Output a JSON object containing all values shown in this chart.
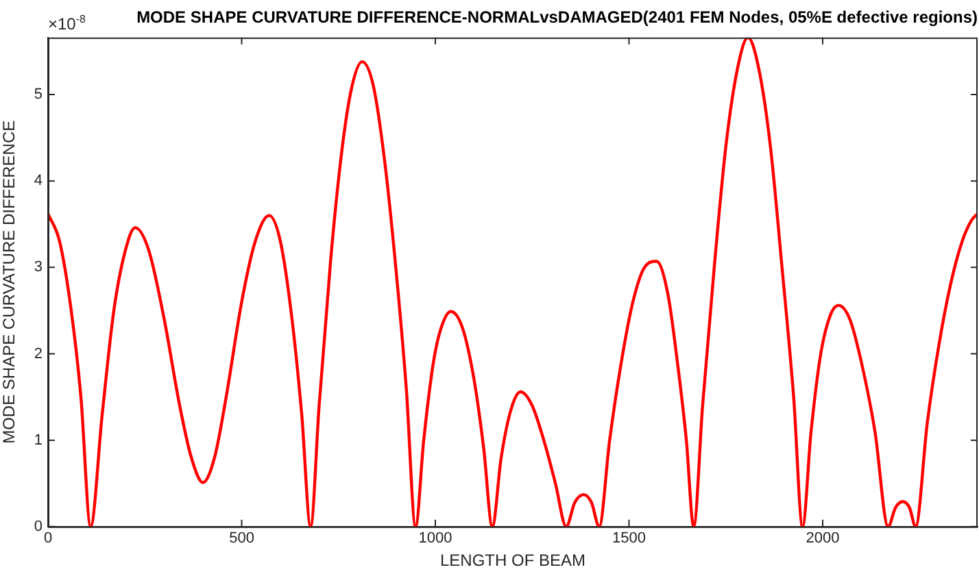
{
  "chart_data": {
    "type": "line",
    "title": "MODE SHAPE CURVATURE DIFFERENCE-NORMALvsDAMAGED(2401 FEM Nodes, 05%E defective regions)",
    "xlabel": "LENGTH OF BEAM",
    "ylabel": "MODE SHAPE CURVATURE DIFFERENCE",
    "annotations": [
      "×10$^{-8}$"
    ],
    "x": [
      0,
      30,
      60,
      85,
      110,
      140,
      170,
      200,
      225,
      260,
      300,
      340,
      370,
      400,
      430,
      460,
      500,
      535,
      571,
      600,
      630,
      655,
      678,
      700,
      730,
      760,
      785,
      811,
      840,
      870,
      900,
      925,
      949,
      970,
      995,
      1015,
      1040,
      1070,
      1100,
      1125,
      1147,
      1170,
      1195,
      1220,
      1250,
      1280,
      1310,
      1338,
      1360,
      1383,
      1403,
      1423,
      1450,
      1480,
      1510,
      1540,
      1571,
      1600,
      1625,
      1648,
      1667,
      1690,
      1720,
      1750,
      1780,
      1807,
      1835,
      1865,
      1895,
      1925,
      1948,
      1970,
      1995,
      2020,
      2041,
      2070,
      2100,
      2135,
      2169,
      2188,
      2207,
      2224,
      2240,
      2270,
      2300,
      2330,
      2360,
      2385,
      2400
    ],
    "series": [
      {
        "color": "#ff0000",
        "values": [
          3.62,
          3.3,
          2.5,
          1.5,
          0,
          1.3,
          2.5,
          3.2,
          3.46,
          3.2,
          2.4,
          1.4,
          0.8,
          0.51,
          0.8,
          1.5,
          2.6,
          3.3,
          3.6,
          3.3,
          2.4,
          1.3,
          0,
          1.4,
          3.1,
          4.4,
          5.1,
          5.38,
          5.1,
          4.2,
          2.9,
          1.6,
          0,
          1.0,
          1.9,
          2.3,
          2.49,
          2.3,
          1.7,
          0.9,
          0,
          0.8,
          1.35,
          1.56,
          1.4,
          1.0,
          0.5,
          0,
          0.28,
          0.37,
          0.28,
          0,
          1.0,
          1.9,
          2.6,
          3.0,
          3.07,
          2.7,
          1.9,
          1.0,
          0,
          1.4,
          3.0,
          4.4,
          5.3,
          5.66,
          5.3,
          4.4,
          3.0,
          1.5,
          0,
          1.1,
          2.0,
          2.45,
          2.56,
          2.4,
          1.9,
          1.1,
          0,
          0.22,
          0.29,
          0.22,
          0,
          1.2,
          2.1,
          2.8,
          3.3,
          3.55,
          3.62
        ]
      }
    ],
    "xlim": [
      0,
      2400
    ],
    "xticks": [
      0,
      500,
      1000,
      1500,
      2000
    ],
    "ylim": [
      0,
      5.66
    ],
    "yticks": [
      0,
      1,
      2,
      3,
      4,
      5
    ],
    "grid": false,
    "legend": false,
    "marker": "none",
    "line_style": "solid"
  }
}
